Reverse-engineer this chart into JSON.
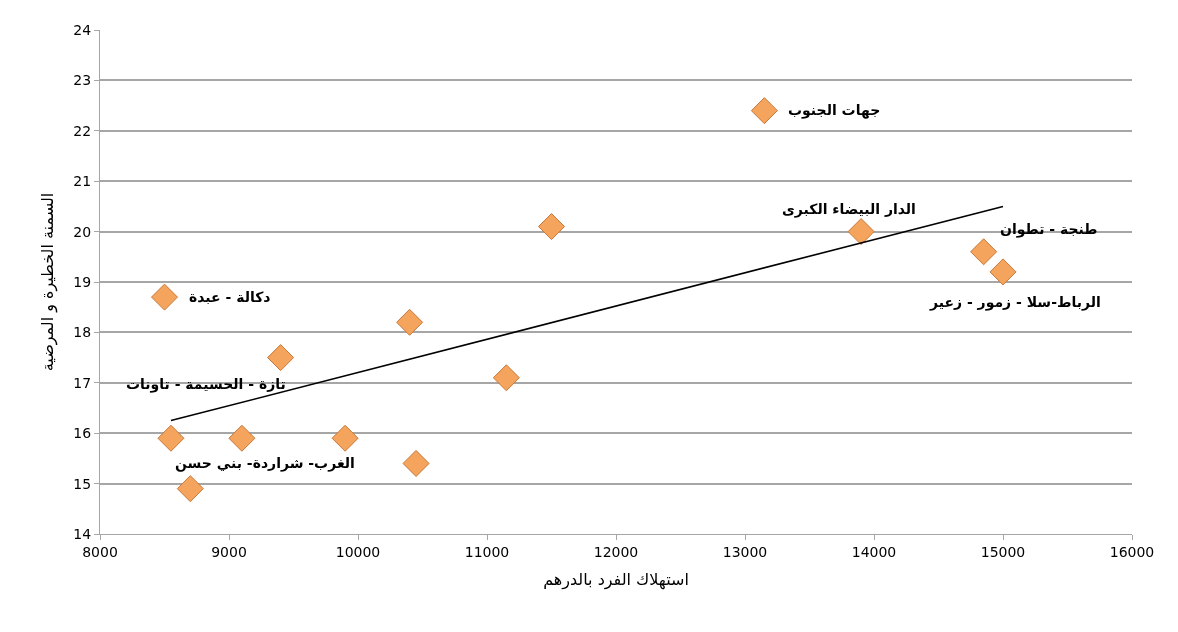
{
  "chart_data": {
    "type": "scatter",
    "xlabel": "استهلاك الفرد بالدرهم",
    "ylabel": "السمنة الخطيرة و المرضية",
    "xlim": [
      8000,
      16000
    ],
    "xticks": [
      8000,
      9000,
      10000,
      11000,
      12000,
      13000,
      14000,
      15000,
      16000
    ],
    "ylim": [
      14,
      24
    ],
    "yticks": [
      14,
      15,
      16,
      17,
      18,
      19,
      20,
      21,
      22,
      23,
      24
    ],
    "grid": "y",
    "marker": "diamond",
    "series": [
      {
        "color": "#f4a45c",
        "x": [
          13150,
          11500,
          13900,
          14850,
          15000,
          8500,
          10400,
          9400,
          11150,
          8550,
          9100,
          9900,
          10450,
          8700
        ],
        "values": [
          22.4,
          20.1,
          20.0,
          19.6,
          19.2,
          18.7,
          18.2,
          17.5,
          17.1,
          15.9,
          15.9,
          15.9,
          15.4,
          14.9
        ]
      },
      {
        "type": "line",
        "color": "#000000",
        "marker": "none",
        "line_style": "solid",
        "x": [
          8550,
          15000
        ],
        "values": [
          16.25,
          20.5
        ]
      }
    ],
    "annotations": [
      {
        "text": "جهات الجنوب",
        "x": 13150,
        "y": 22.4
      },
      {
        "text": "الدار البيضاء الكبرى",
        "x": 13900,
        "y": 20.0
      },
      {
        "text": "طنجة - تطوان",
        "x": 14850,
        "y": 19.6
      },
      {
        "text": "الرباط-سلا - زمور - زعير",
        "x": 15000,
        "y": 19.2
      },
      {
        "text": "دكالة - عبدة",
        "x": 8500,
        "y": 18.7
      },
      {
        "text": "تازة - الحسيمة - تاونات",
        "x": 9400,
        "y": 17.5
      },
      {
        "text": "الغرب- شراردة- بني حسن",
        "x": 8700,
        "y": 14.9
      }
    ]
  }
}
